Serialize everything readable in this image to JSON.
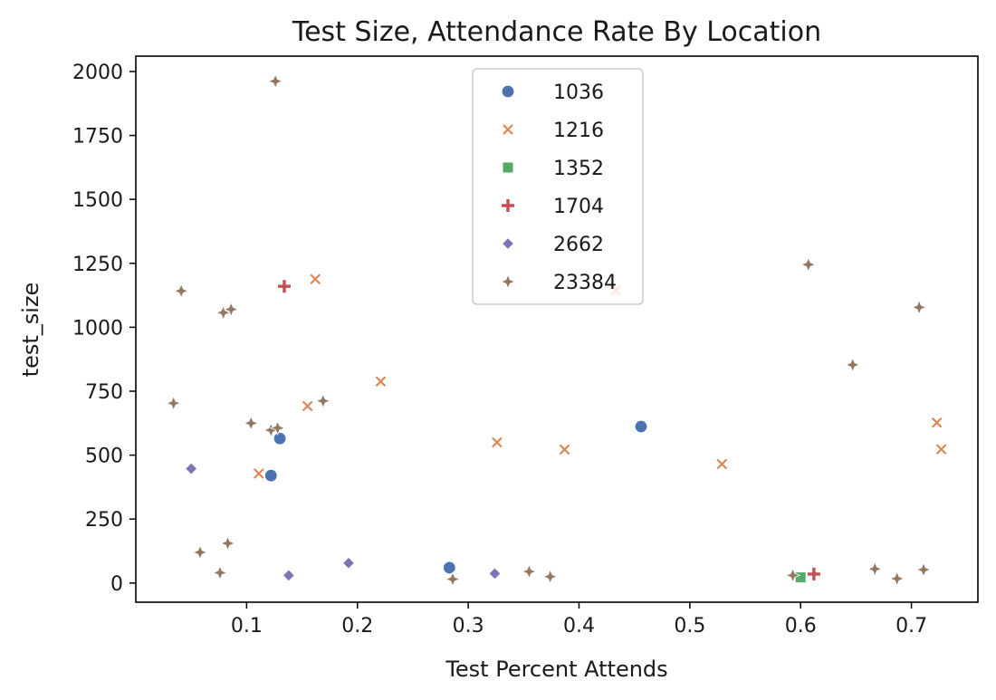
{
  "chart_data": {
    "type": "scatter",
    "title": "Test Size, Attendance Rate By Location",
    "xlabel": "Test Percent Attends",
    "ylabel": "test_size",
    "xlim": [
      0.0,
      0.76
    ],
    "ylim": [
      -75,
      2060
    ],
    "xticks": [
      0.1,
      0.2,
      0.3,
      0.4,
      0.5,
      0.6,
      0.7
    ],
    "xtick_labels": [
      "0.1",
      "0.2",
      "0.3",
      "0.4",
      "0.5",
      "0.6",
      "0.7"
    ],
    "yticks": [
      0,
      250,
      500,
      750,
      1000,
      1250,
      1500,
      1750,
      2000
    ],
    "ytick_labels": [
      "0",
      "250",
      "500",
      "750",
      "1000",
      "1250",
      "1500",
      "1750",
      "2000"
    ],
    "grid": false,
    "legend_position": "top-center",
    "series": [
      {
        "name": "1036",
        "marker": "circle",
        "color": "#4c72b0",
        "points": [
          [
            0.122,
            420
          ],
          [
            0.13,
            565
          ],
          [
            0.283,
            60
          ],
          [
            0.456,
            612
          ]
        ]
      },
      {
        "name": "1216",
        "marker": "x",
        "color": "#dd8452",
        "points": [
          [
            0.162,
            1188
          ],
          [
            0.221,
            788
          ],
          [
            0.155,
            692
          ],
          [
            0.111,
            428
          ],
          [
            0.326,
            550
          ],
          [
            0.387,
            522
          ],
          [
            0.529,
            465
          ],
          [
            0.433,
            1145
          ],
          [
            0.723,
            627
          ],
          [
            0.727,
            523
          ]
        ]
      },
      {
        "name": "1352",
        "marker": "square",
        "color": "#55a868",
        "points": [
          [
            0.6,
            22
          ]
        ]
      },
      {
        "name": "1704",
        "marker": "plus",
        "color": "#c44e52",
        "points": [
          [
            0.134,
            1160
          ],
          [
            0.612,
            35
          ]
        ]
      },
      {
        "name": "2662",
        "marker": "diamond",
        "color": "#8172b3",
        "points": [
          [
            0.05,
            447
          ],
          [
            0.138,
            30
          ],
          [
            0.192,
            78
          ],
          [
            0.324,
            37
          ]
        ]
      },
      {
        "name": "23384",
        "marker": "star4",
        "color": "#937860",
        "points": [
          [
            0.126,
            1962
          ],
          [
            0.041,
            1142
          ],
          [
            0.079,
            1057
          ],
          [
            0.086,
            1070
          ],
          [
            0.034,
            703
          ],
          [
            0.104,
            625
          ],
          [
            0.122,
            598
          ],
          [
            0.128,
            606
          ],
          [
            0.169,
            712
          ],
          [
            0.058,
            120
          ],
          [
            0.083,
            155
          ],
          [
            0.076,
            40
          ],
          [
            0.286,
            15
          ],
          [
            0.355,
            45
          ],
          [
            0.374,
            25
          ],
          [
            0.607,
            1245
          ],
          [
            0.647,
            853
          ],
          [
            0.707,
            1078
          ],
          [
            0.593,
            30
          ],
          [
            0.667,
            55
          ],
          [
            0.687,
            17
          ],
          [
            0.711,
            52
          ]
        ]
      }
    ]
  }
}
